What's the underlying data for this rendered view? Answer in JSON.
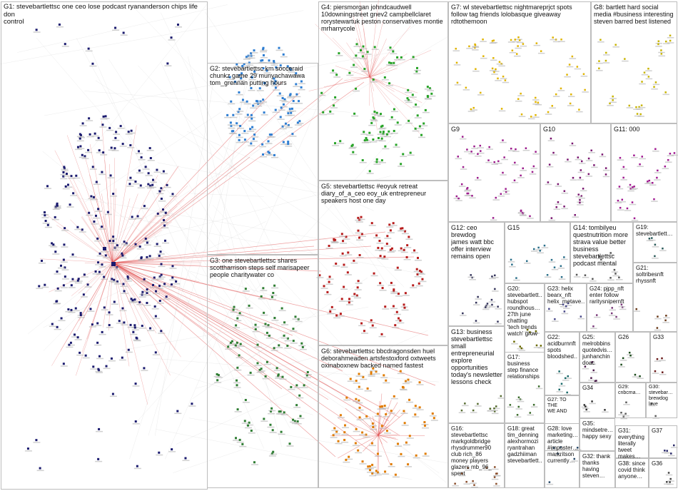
{
  "colors": {
    "G1": "#1a1a6e",
    "G2": "#2d7dd2",
    "G3": "#2e7d32",
    "G4": "#27a327",
    "G5": "#b71c1c",
    "G6": "#e07b00",
    "G7": "#e0b400",
    "G8": "#c8b400",
    "G9": "#9c1c8c",
    "G10": "#7a1670",
    "G11": "#a01890",
    "edge": "#e05050",
    "edge_grey": "#9e9e9e"
  },
  "groups": [
    {
      "id": "G1",
      "label": "G1: stevebartlettsc one ceo lose podcast ryananderson chips life don\ncontrol"
    },
    {
      "id": "G2",
      "label": "G2: stevebartlettsc km socceraid\nchunkz game 29 munyachawawa\ntom_grennan putting hours"
    },
    {
      "id": "G3",
      "label": "G3: one stevebartlettsc shares\nscottharrison steps self marisapeer\npeople charitywater co"
    },
    {
      "id": "G4",
      "label": "G4: piersmorgan johndcaudwell\n10downingstreet gnev2 campbellclaret\nrorystewartuk peston conservatives montie\nmrharrycole"
    },
    {
      "id": "G5",
      "label": "G5: stevebartlettsc #eoyuk retreat\ndiary_of_a_ceo eoy_uk entrepreneur\nspeakers host one day"
    },
    {
      "id": "G6",
      "label": "G6: stevebartlettsc bbcdragonsden huel\ndeborahmeaden artsfestoxford oxtweets\noxinaboxnew backed named fastest"
    },
    {
      "id": "G7",
      "label": "G7: wl stevebartlettsc nightmareprjct spots\nfollow tag friends lolobasque giveaway\nrdtothemoon"
    },
    {
      "id": "G8",
      "label": "G8: bartlett hard social\nmedia #business interesting\nsteven barred best listened"
    },
    {
      "id": "G9",
      "label": "G9"
    },
    {
      "id": "G10",
      "label": "G10"
    },
    {
      "id": "G11",
      "label": "G11: 000"
    },
    {
      "id": "G12",
      "label": "G12: ceo brewdog\njames watt bbc\noffer interview\nremains open"
    },
    {
      "id": "G13",
      "label": "G13: business\nstevebartlettsc\nsmall\nentrepreneurial\nexplore\nopportunities\ntoday's newsletter\nlessons check"
    },
    {
      "id": "G14",
      "label": "G14: tombilyeu\nquestnutrition more\nstrava value better\nbusiness\nstevebartlettsc\npodcast mental"
    },
    {
      "id": "G15",
      "label": "G15"
    },
    {
      "id": "G16",
      "label": "G16:\nstevebartlettsc\nmarkgoldbridge\nrhysdrummer90\nclub rich_86\nmoney players\nglazers mb_96_\nspent"
    },
    {
      "id": "G17",
      "label": "G17:\nbusiness\nstep finance\nrelationships"
    },
    {
      "id": "G18",
      "label": "G18: great\ntim_denning\nalexhormozi\nryantrahan\ngadzhiiman\nstevebartlett…"
    },
    {
      "id": "G19",
      "label": "G19:\nstevebartlett…"
    },
    {
      "id": "G20",
      "label": "G20:\nstevebartlett…\nhubspot\nroundhous…\n27th june\nchatting\n'tech trends\nwatch' grow"
    },
    {
      "id": "G21",
      "label": "G21:\nsoltribesnft\nrhyssnft"
    },
    {
      "id": "G22",
      "label": "G22:\nacidburnnft\nspots\nbloodshed…"
    },
    {
      "id": "G23",
      "label": "G23: helix\nbearx_nft\nhelix_metave…"
    },
    {
      "id": "G24",
      "label": "G24: pjpp_nft\nenter follow\nraritysnipernft"
    },
    {
      "id": "G25",
      "label": "G25:\nmelrobbins\nquotedvis…\njunhanchin\ndoac"
    },
    {
      "id": "G26",
      "label": "G26"
    },
    {
      "id": "G27",
      "label": "G27: TO THE\nWE AND"
    },
    {
      "id": "G28",
      "label": "G28: love\nmarketing…\narticle\n#imposter…\nmarkritson\ncurrently…"
    },
    {
      "id": "G29",
      "label": "G29:\ncnbcma…"
    },
    {
      "id": "G30",
      "label": "G30:\nstevebar…\nbrewdog\nlove"
    },
    {
      "id": "G31",
      "label": "G31:\neverything\nliterally\ntweet\nmakes…"
    },
    {
      "id": "G32",
      "label": "G32: thank\nthanks\nhaving\nsteven…"
    },
    {
      "id": "G33",
      "label": "G33"
    },
    {
      "id": "G34",
      "label": "G34"
    },
    {
      "id": "G35",
      "label": "G35:\nmindsetre…\nhappy sexy"
    },
    {
      "id": "G36",
      "label": "G36"
    },
    {
      "id": "G37",
      "label": "G37"
    },
    {
      "id": "G38",
      "label": "G38: since\ncovid think\nanyone…"
    }
  ]
}
